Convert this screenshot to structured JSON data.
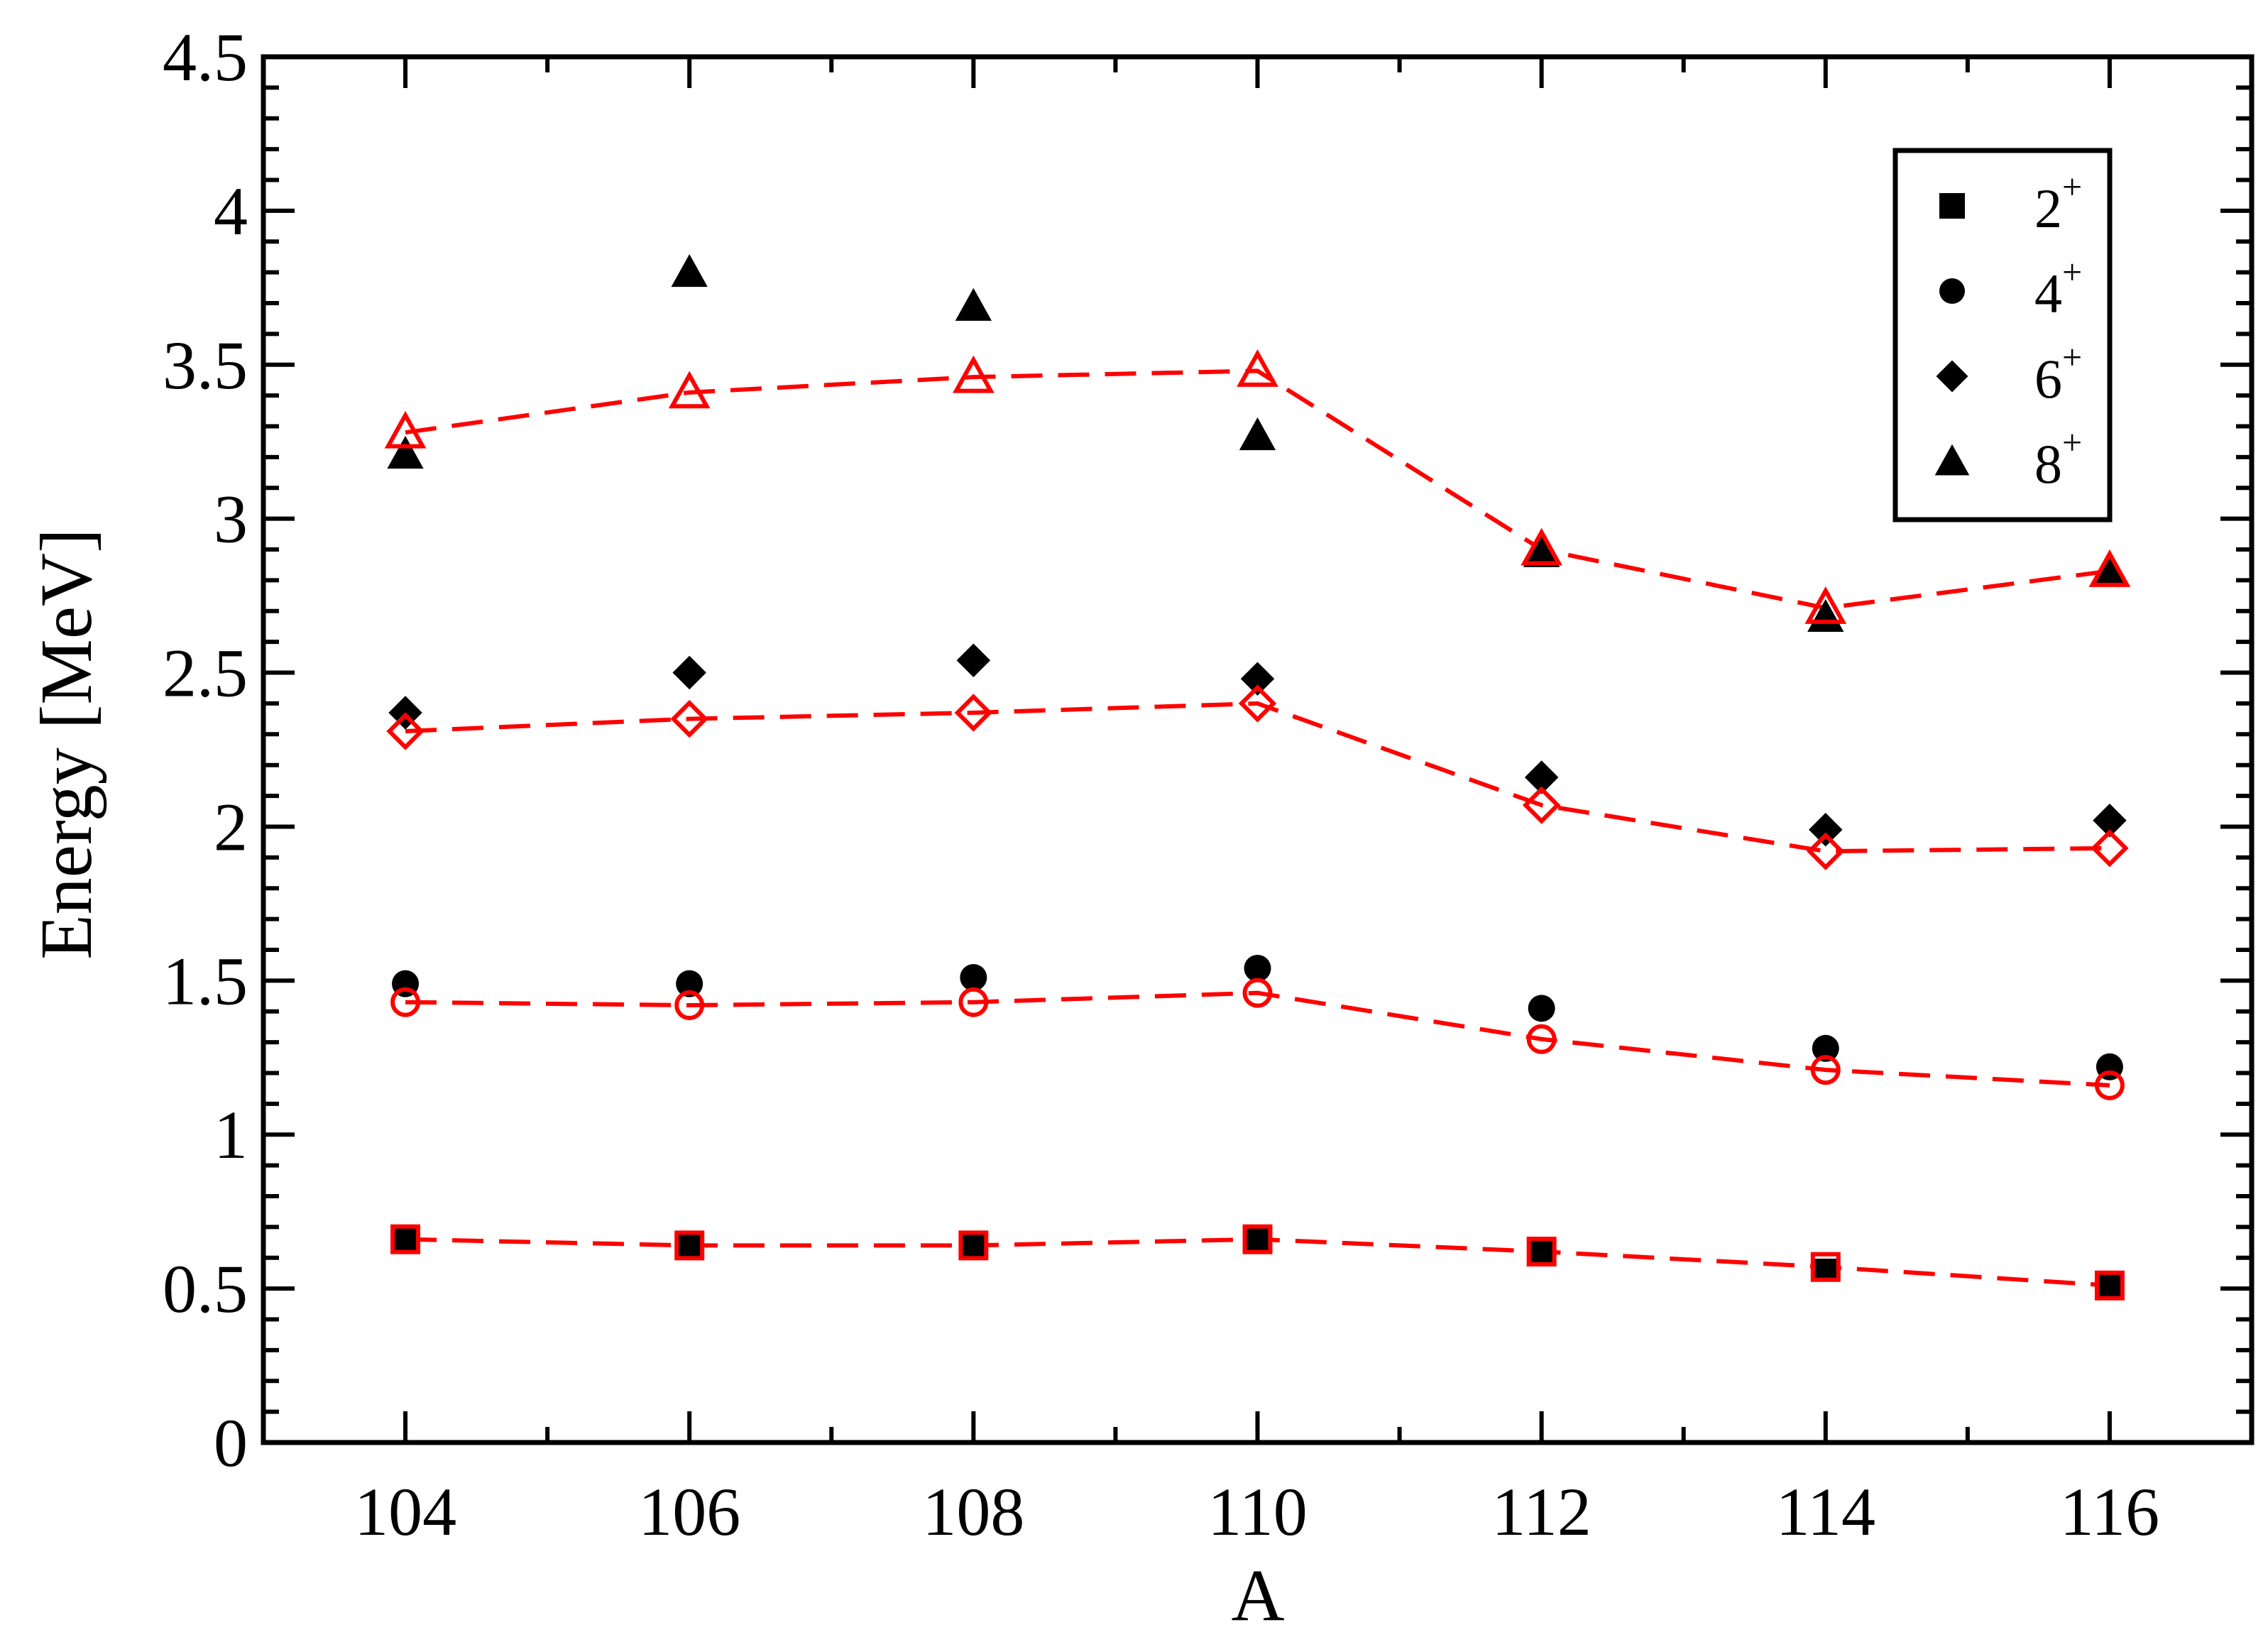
{
  "chart_data": {
    "type": "scatter",
    "title": "",
    "xlabel": "A",
    "ylabel": "Energy [MeV]",
    "xlim": [
      103,
      117
    ],
    "ylim": [
      0,
      4.5
    ],
    "x_ticks": [
      "104",
      "106",
      "108",
      "110",
      "112",
      "114",
      "116"
    ],
    "y_ticks": [
      "0",
      "0.5",
      "1",
      "1.5",
      "2",
      "2.5",
      "3",
      "3.5",
      "4",
      "4.5"
    ],
    "grid": false,
    "legend_position": "top-right",
    "legend": [
      {
        "state": "2",
        "sup": "+",
        "marker": "square"
      },
      {
        "state": "4",
        "sup": "+",
        "marker": "circle"
      },
      {
        "state": "6",
        "sup": "+",
        "marker": "diamond"
      },
      {
        "state": "8",
        "sup": "+",
        "marker": "triangle"
      }
    ],
    "x": [
      104,
      106,
      108,
      110,
      112,
      114,
      116
    ],
    "experimental": [
      {
        "marker": "square",
        "values": [
          0.66,
          0.64,
          0.64,
          0.66,
          0.62,
          0.56,
          0.51
        ]
      },
      {
        "marker": "circle",
        "values": [
          1.49,
          1.49,
          1.51,
          1.54,
          1.41,
          1.28,
          1.22
        ]
      },
      {
        "marker": "diamond",
        "values": [
          2.37,
          2.5,
          2.54,
          2.48,
          2.16,
          1.99,
          2.02
        ]
      },
      {
        "marker": "triangle",
        "values": [
          3.21,
          3.8,
          3.69,
          3.27,
          2.89,
          2.68,
          2.83
        ]
      }
    ],
    "calculated": [
      {
        "marker": "square",
        "values": [
          0.66,
          0.64,
          0.64,
          0.66,
          0.62,
          0.57,
          0.51
        ]
      },
      {
        "marker": "circle",
        "values": [
          1.43,
          1.42,
          1.43,
          1.46,
          1.31,
          1.21,
          1.16
        ]
      },
      {
        "marker": "diamond",
        "values": [
          2.31,
          2.35,
          2.37,
          2.4,
          2.07,
          1.92,
          1.93
        ]
      },
      {
        "marker": "triangle",
        "values": [
          3.28,
          3.41,
          3.46,
          3.48,
          2.9,
          2.71,
          2.83
        ]
      }
    ],
    "colors": {
      "experimental": "#000000",
      "calculated": "#ff0000"
    }
  }
}
